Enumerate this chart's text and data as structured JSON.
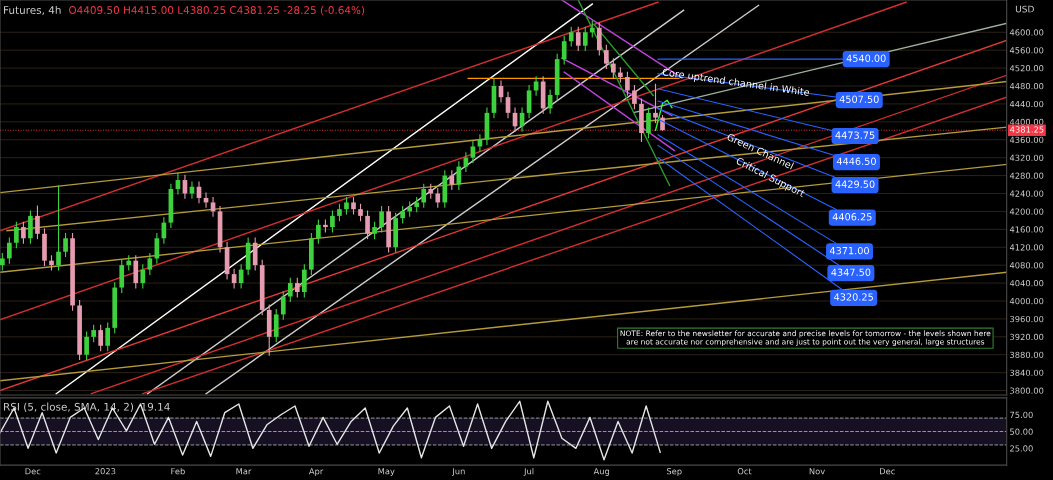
{
  "chart_data": [
    {
      "type": "candlestick",
      "title": "Futures, 4h",
      "subtitle": "O4409.50 H4415.00 L4380.25 C4381.25 -28.25 (-0.64%)",
      "ylabel": "USD",
      "x": [
        "2022-11-18",
        "2022-11-21",
        "2022-11-24",
        "2022-11-27",
        "2022-11-30",
        "2022-12-03",
        "2022-12-06",
        "2022-12-09",
        "2022-12-12",
        "2022-12-15",
        "2022-12-18",
        "2022-12-21",
        "2022-12-24",
        "2022-12-27",
        "2022-12-30",
        "2023-01-02",
        "2023-01-05",
        "2023-01-08",
        "2023-01-11",
        "2023-01-14",
        "2023-01-17",
        "2023-01-20",
        "2023-01-23",
        "2023-01-26",
        "2023-01-29",
        "2023-02-01",
        "2023-02-04",
        "2023-02-07",
        "2023-02-10",
        "2023-02-13",
        "2023-02-16",
        "2023-02-19",
        "2023-02-22",
        "2023-02-25",
        "2023-02-28",
        "2023-03-03",
        "2023-03-06",
        "2023-03-09",
        "2023-03-12",
        "2023-03-15",
        "2023-03-18",
        "2023-03-21",
        "2023-03-24",
        "2023-03-27",
        "2023-03-30",
        "2023-04-02",
        "2023-04-05",
        "2023-04-08",
        "2023-04-11",
        "2023-04-14",
        "2023-04-17",
        "2023-04-20",
        "2023-04-23",
        "2023-04-26",
        "2023-04-29",
        "2023-05-02",
        "2023-05-05",
        "2023-05-08",
        "2023-05-11",
        "2023-05-14",
        "2023-05-17",
        "2023-05-20",
        "2023-05-23",
        "2023-05-26",
        "2023-05-29",
        "2023-06-01",
        "2023-06-04",
        "2023-06-07",
        "2023-06-10",
        "2023-06-13",
        "2023-06-16",
        "2023-06-19",
        "2023-06-22",
        "2023-06-25",
        "2023-06-28",
        "2023-07-01",
        "2023-07-04",
        "2023-07-07",
        "2023-07-10",
        "2023-07-13",
        "2023-07-16",
        "2023-07-19",
        "2023-07-22",
        "2023-07-25",
        "2023-07-28",
        "2023-07-31",
        "2023-08-03",
        "2023-08-06",
        "2023-08-09",
        "2023-08-12",
        "2023-08-15",
        "2023-08-18",
        "2023-08-21",
        "2023-08-24",
        "2023-08-27"
      ],
      "ohlc": [
        [
          4080,
          4107,
          4068,
          4095
        ],
        [
          4095,
          4142,
          4083,
          4130
        ],
        [
          4130,
          4177,
          4118,
          4165
        ],
        [
          4165,
          4177,
          4128,
          4140
        ],
        [
          4140,
          4202,
          4128,
          4190
        ],
        [
          4190,
          4213,
          4138,
          4150
        ],
        [
          4150,
          4162,
          4078,
          4090
        ],
        [
          4090,
          4102,
          4068,
          4080
        ],
        [
          4080,
          4258,
          4068,
          4110
        ],
        [
          4110,
          4152,
          4098,
          4140
        ],
        [
          4140,
          4152,
          3978,
          3990
        ],
        [
          3990,
          4002,
          3868,
          3880
        ],
        [
          3880,
          3932,
          3868,
          3920
        ],
        [
          3920,
          3947,
          3908,
          3935
        ],
        [
          3935,
          3947,
          3888,
          3900
        ],
        [
          3900,
          3952,
          3888,
          3940
        ],
        [
          3940,
          4042,
          3928,
          4030
        ],
        [
          4030,
          4092,
          4018,
          4080
        ],
        [
          4080,
          4102,
          4068,
          4090
        ],
        [
          4090,
          4102,
          4028,
          4040
        ],
        [
          4040,
          4082,
          4028,
          4070
        ],
        [
          4070,
          4107,
          4058,
          4095
        ],
        [
          4095,
          4152,
          4083,
          4140
        ],
        [
          4140,
          4187,
          4128,
          4175
        ],
        [
          4175,
          4262,
          4163,
          4250
        ],
        [
          4250,
          4287,
          4238,
          4270
        ],
        [
          4270,
          4282,
          4228,
          4240
        ],
        [
          4240,
          4267,
          4228,
          4255
        ],
        [
          4255,
          4267,
          4218,
          4230
        ],
        [
          4230,
          4242,
          4208,
          4220
        ],
        [
          4220,
          4232,
          4188,
          4200
        ],
        [
          4200,
          4212,
          4108,
          4120
        ],
        [
          4120,
          4132,
          4048,
          4060
        ],
        [
          4060,
          4072,
          4028,
          4040
        ],
        [
          4040,
          4082,
          4028,
          4070
        ],
        [
          4070,
          4142,
          4058,
          4130
        ],
        [
          4130,
          4142,
          4068,
          4080
        ],
        [
          4080,
          4092,
          3968,
          3980
        ],
        [
          3980,
          3992,
          3878,
          3920
        ],
        [
          3920,
          3982,
          3908,
          3970
        ],
        [
          3970,
          4022,
          3958,
          4010
        ],
        [
          4010,
          4052,
          3998,
          4040
        ],
        [
          4040,
          4052,
          4008,
          4020
        ],
        [
          4020,
          4082,
          4008,
          4070
        ],
        [
          4070,
          4152,
          4058,
          4140
        ],
        [
          4140,
          4182,
          4128,
          4170
        ],
        [
          4170,
          4182,
          4153,
          4165
        ],
        [
          4165,
          4202,
          4153,
          4190
        ],
        [
          4190,
          4217,
          4178,
          4205
        ],
        [
          4205,
          4232,
          4193,
          4220
        ],
        [
          4220,
          4232,
          4193,
          4205
        ],
        [
          4205,
          4217,
          4178,
          4190
        ],
        [
          4190,
          4202,
          4138,
          4150
        ],
        [
          4150,
          4177,
          4138,
          4165
        ],
        [
          4165,
          4212,
          4153,
          4200
        ],
        [
          4200,
          4212,
          4108,
          4120
        ],
        [
          4120,
          4197,
          4108,
          4185
        ],
        [
          4185,
          4212,
          4173,
          4200
        ],
        [
          4200,
          4222,
          4188,
          4210
        ],
        [
          4210,
          4232,
          4198,
          4220
        ],
        [
          4220,
          4262,
          4208,
          4250
        ],
        [
          4250,
          4262,
          4228,
          4240
        ],
        [
          4240,
          4252,
          4208,
          4220
        ],
        [
          4220,
          4292,
          4208,
          4280
        ],
        [
          4280,
          4292,
          4248,
          4260
        ],
        [
          4260,
          4312,
          4248,
          4300
        ],
        [
          4300,
          4332,
          4288,
          4320
        ],
        [
          4320,
          4357,
          4308,
          4345
        ],
        [
          4345,
          4372,
          4333,
          4360
        ],
        [
          4360,
          4432,
          4348,
          4420
        ],
        [
          4420,
          4497,
          4408,
          4480
        ],
        [
          4480,
          4492,
          4443,
          4455
        ],
        [
          4455,
          4467,
          4408,
          4420
        ],
        [
          4420,
          4432,
          4378,
          4390
        ],
        [
          4390,
          4432,
          4378,
          4420
        ],
        [
          4420,
          4482,
          4408,
          4470
        ],
        [
          4470,
          4502,
          4458,
          4490
        ],
        [
          4490,
          4502,
          4418,
          4430
        ],
        [
          4430,
          4472,
          4418,
          4460
        ],
        [
          4460,
          4552,
          4448,
          4540
        ],
        [
          4540,
          4592,
          4528,
          4580
        ],
        [
          4580,
          4612,
          4568,
          4600
        ],
        [
          4600,
          4612,
          4558,
          4570
        ],
        [
          4570,
          4612,
          4558,
          4600
        ],
        [
          4600,
          4626,
          4588,
          4610
        ],
        [
          4610,
          4622,
          4548,
          4560
        ],
        [
          4560,
          4572,
          4518,
          4530
        ],
        [
          4530,
          4542,
          4498,
          4510
        ],
        [
          4510,
          4522,
          4488,
          4500
        ],
        [
          4500,
          4512,
          4458,
          4470
        ],
        [
          4470,
          4482,
          4428,
          4440
        ],
        [
          4440,
          4452,
          4355,
          4375
        ],
        [
          4375,
          4432,
          4363,
          4420
        ],
        [
          4420,
          4485,
          4397,
          4409.5
        ],
        [
          4409.5,
          4415,
          4380.25,
          4381.25
        ]
      ],
      "series": [
        {
          "type": "line",
          "color": "#ffffff",
          "x": [
            "2022-12-11",
            "2023-07-28"
          ],
          "values": [
            3793,
            4663
          ]
        },
        {
          "type": "line",
          "color": "#cfcfcf",
          "x": [
            "2023-01-19",
            "2023-09-05"
          ],
          "values": [
            3793,
            4649
          ]
        },
        {
          "type": "line",
          "color": "#cfcfcf",
          "x": [
            "2023-02-13",
            "2023-10-07"
          ],
          "values": [
            3793,
            4660
          ]
        },
        {
          "type": "line",
          "color": "#d32f2f",
          "x": [
            "2022-11-17",
            "2023-08-25"
          ],
          "values": [
            4157,
            4667
          ]
        },
        {
          "type": "line",
          "color": "#d32f2f",
          "x": [
            "2022-11-17",
            "2023-12-09"
          ],
          "values": [
            3958,
            4667
          ]
        },
        {
          "type": "line",
          "color": "#e53935",
          "x": [
            "2022-11-17",
            "2024-01-21"
          ],
          "values": [
            3800,
            4582
          ]
        },
        {
          "type": "line",
          "color": "#d32f2f",
          "x": [
            "2022-12-26",
            "2024-01-21"
          ],
          "values": [
            3793,
            4504
          ]
        },
        {
          "type": "line",
          "color": "#d32f2f",
          "x": [
            "2023-01-17",
            "2024-01-21"
          ],
          "values": [
            3793,
            4455
          ]
        },
        {
          "type": "line",
          "color": "#b59b3a",
          "x": [
            "2022-11-17",
            "2024-01-21"
          ],
          "values": [
            4242,
            4490
          ]
        },
        {
          "type": "line",
          "color": "#b59b3a",
          "x": [
            "2022-11-20",
            "2024-01-21"
          ],
          "values": [
            4157,
            4388
          ]
        },
        {
          "type": "line",
          "color": "#b59b3a",
          "x": [
            "2022-11-17",
            "2024-01-21"
          ],
          "values": [
            4064,
            4305
          ]
        },
        {
          "type": "line",
          "color": "#b59b3a",
          "x": [
            "2022-11-17",
            "2024-01-21"
          ],
          "values": [
            3822,
            4064
          ]
        },
        {
          "type": "line",
          "color": "#a0b0a0",
          "x": [
            "2023-08-15",
            "2024-01-21"
          ],
          "values": [
            4421,
            4620
          ]
        },
        {
          "type": "line",
          "color": "#ff9800",
          "x": [
            "2023-06-05",
            "2023-09-03"
          ],
          "values": [
            4497,
            4497
          ]
        },
        {
          "type": "line",
          "color": "#c040e0",
          "x": [
            "2023-07-15",
            "2023-09-04"
          ],
          "values": [
            4672,
            4499
          ]
        },
        {
          "type": "line",
          "color": "#c040e0",
          "x": [
            "2023-07-15",
            "2023-08-31"
          ],
          "values": [
            4542,
            4414
          ]
        },
        {
          "type": "line",
          "color": "#c040e0",
          "x": [
            "2023-07-16",
            "2023-09-01"
          ],
          "values": [
            4511,
            4336
          ]
        },
        {
          "type": "line",
          "color": "#2e9e2e",
          "x": [
            "2023-07-22",
            "2023-08-30"
          ],
          "values": [
            4672,
            4258
          ]
        },
        {
          "type": "line",
          "color": "#2e9e2e",
          "x": [
            "2023-07-29",
            "2023-08-23"
          ],
          "values": [
            4616,
            4459
          ]
        },
        {
          "type": "line",
          "color": "#33ff33",
          "x": [
            "2023-08-24",
            "2023-08-27",
            "2023-08-29",
            "2023-08-31"
          ],
          "values": [
            4381,
            4441,
            4448,
            4432
          ]
        }
      ],
      "xlim": [
        "2022-11-17",
        "2024-01-21"
      ],
      "ylim": [
        3790,
        4672
      ],
      "yticks": [
        {
          "value": 3800,
          "label": "3800.00"
        },
        {
          "value": 3840,
          "label": "3840.00"
        },
        {
          "value": 3880,
          "label": "3880.00"
        },
        {
          "value": 3920,
          "label": "3920.00"
        },
        {
          "value": 3960,
          "label": "3960.00"
        },
        {
          "value": 4000,
          "label": "4000.00"
        },
        {
          "value": 4040,
          "label": "4040.00"
        },
        {
          "value": 4080,
          "label": "4080.00"
        },
        {
          "value": 4120,
          "label": "4120.00"
        },
        {
          "value": 4160,
          "label": "4160.00"
        },
        {
          "value": 4200,
          "label": "4200.00"
        },
        {
          "value": 4240,
          "label": "4240.00"
        },
        {
          "value": 4280,
          "label": "4280.00"
        },
        {
          "value": 4320,
          "label": "4320.00"
        },
        {
          "value": 4360,
          "label": "4360.00"
        },
        {
          "value": 4400,
          "label": "4400.00"
        },
        {
          "value": 4440,
          "label": "4440.00"
        },
        {
          "value": 4480,
          "label": "4480.00"
        },
        {
          "value": 4520,
          "label": "4520.00"
        },
        {
          "value": 4560,
          "label": "4560.00"
        },
        {
          "value": 4600,
          "label": "4600.00"
        }
      ],
      "tick_labels": "y",
      "grid": "y",
      "ref_lines": [
        {
          "axis": "y",
          "value": 4381.25,
          "label": "4381.25",
          "color": "#f23645",
          "line_style": "dotted"
        }
      ],
      "annotations": [
        {
          "text": "4540.00",
          "x": "2023-08-25",
          "y": 4540
        },
        {
          "text": "4507.50",
          "x": "2023-08-25",
          "y": 4507.5
        },
        {
          "text": "4473.75",
          "x": "2023-08-25",
          "y": 4473.75
        },
        {
          "text": "4446.50",
          "x": "2023-08-25",
          "y": 4446.5
        },
        {
          "text": "4429.50",
          "x": "2023-08-25",
          "y": 4429.5
        },
        {
          "text": "4406.25",
          "x": "2023-08-25",
          "y": 4406.25
        },
        {
          "text": "4371.00",
          "x": "2023-08-25",
          "y": 4371
        },
        {
          "text": "4347.50",
          "x": "2023-08-25",
          "y": 4347.5
        },
        {
          "text": "4320.25",
          "x": "2023-08-25",
          "y": 4320.25
        },
        "Core uptrend channel in White",
        "Green Channel",
        "Critical Support",
        "NOTE: Refer to the newsletter for accurate and precise levels for tomorrow - the levels shown here\nare not accurate nor comprehensive and are just to point out the very general, large structures"
      ]
    },
    {
      "type": "line",
      "title": "RSI (5, close, SMA, 14, 2)  19.14",
      "series": [
        {
          "color": "#e6e6e6",
          "x": [
            "2022-11-17",
            "2022-11-23",
            "2022-11-29",
            "2022-12-05",
            "2022-12-11",
            "2022-12-17",
            "2022-12-23",
            "2022-12-29",
            "2023-01-04",
            "2023-01-10",
            "2023-01-16",
            "2023-01-22",
            "2023-01-28",
            "2023-02-03",
            "2023-02-09",
            "2023-02-15",
            "2023-02-21",
            "2023-02-27",
            "2023-03-05",
            "2023-03-11",
            "2023-03-17",
            "2023-03-23",
            "2023-03-29",
            "2023-04-04",
            "2023-04-10",
            "2023-04-16",
            "2023-04-22",
            "2023-04-28",
            "2023-05-04",
            "2023-05-10",
            "2023-05-16",
            "2023-05-22",
            "2023-05-28",
            "2023-06-03",
            "2023-06-09",
            "2023-06-15",
            "2023-06-21",
            "2023-06-27",
            "2023-07-03",
            "2023-07-09",
            "2023-07-15",
            "2023-07-21",
            "2023-07-27",
            "2023-08-02",
            "2023-08-08",
            "2023-08-14",
            "2023-08-20",
            "2023-08-26"
          ],
          "values": [
            48,
            85,
            25,
            78,
            18,
            71,
            85,
            38,
            85,
            51,
            91,
            31,
            71,
            15,
            65,
            13,
            78,
            91,
            25,
            60,
            75,
            88,
            28,
            71,
            31,
            65,
            85,
            18,
            58,
            85,
            11,
            71,
            88,
            28,
            91,
            25,
            65,
            95,
            11,
            95,
            40,
            25,
            71,
            8,
            65,
            18,
            88,
            19.14
          ]
        }
      ],
      "xlim": [
        "2022-11-17",
        "2024-01-21"
      ],
      "xticks": [
        {
          "value": "2022-12-01",
          "label": "Dec"
        },
        {
          "value": "2023-01-01",
          "label": "2023"
        },
        {
          "value": "2023-02-01",
          "label": "Feb"
        },
        {
          "value": "2023-03-01",
          "label": "Mar"
        },
        {
          "value": "2023-04-01",
          "label": "Apr"
        },
        {
          "value": "2023-05-01",
          "label": "May"
        },
        {
          "value": "2023-06-01",
          "label": "Jun"
        },
        {
          "value": "2023-07-01",
          "label": "Jul"
        },
        {
          "value": "2023-08-01",
          "label": "Aug"
        },
        {
          "value": "2023-09-01",
          "label": "Sep"
        },
        {
          "value": "2023-10-01",
          "label": "Oct"
        },
        {
          "value": "2023-11-01",
          "label": "Nov"
        },
        {
          "value": "2023-12-01",
          "label": "Dec"
        }
      ],
      "ylim": [
        0,
        100
      ],
      "yticks": [
        {
          "value": 25,
          "label": "25.00"
        },
        {
          "value": 50,
          "label": "50.00"
        },
        {
          "value": 75,
          "label": "75.00"
        }
      ],
      "bands": [
        {
          "axis": "y",
          "from": 30,
          "to": 70,
          "color": "#7e57c2"
        }
      ],
      "ref_lines": [
        {
          "axis": "y",
          "value": 70,
          "color": "#9e9e9e",
          "line_style": "dashed"
        },
        {
          "axis": "y",
          "value": 50,
          "color": "#9e9e9e",
          "line_style": "dashed"
        },
        {
          "axis": "y",
          "value": 30,
          "color": "#9e9e9e",
          "line_style": "dashed"
        }
      ]
    }
  ]
}
